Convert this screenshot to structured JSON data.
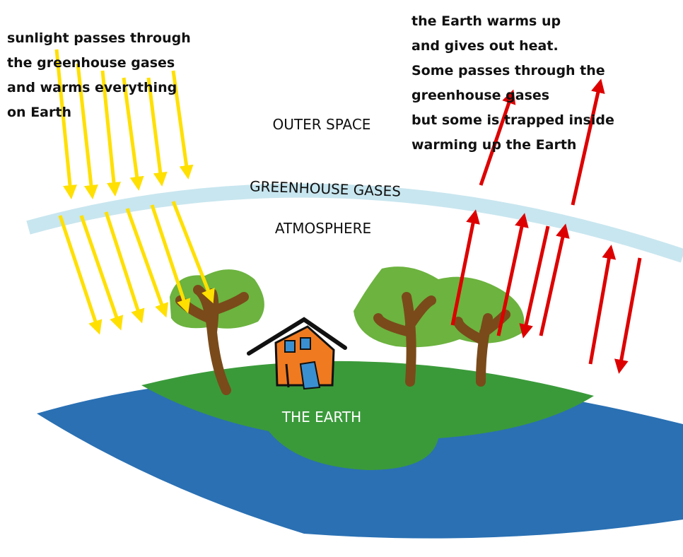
{
  "left_caption": [
    "sunlight passes through",
    "the greenhouse gases",
    "and warms everything",
    "on Earth"
  ],
  "right_caption": [
    "the Earth warms up",
    "and gives out heat.",
    "Some passes through the",
    "greenhouse gases",
    "but some is trapped inside",
    "warming up the Earth"
  ],
  "labels": {
    "outer_space": "OUTER SPACE",
    "greenhouse_gases": "GREENHOUSE GASES",
    "atmosphere": "ATMOSPHERE",
    "earth": "THE EARTH"
  }
}
